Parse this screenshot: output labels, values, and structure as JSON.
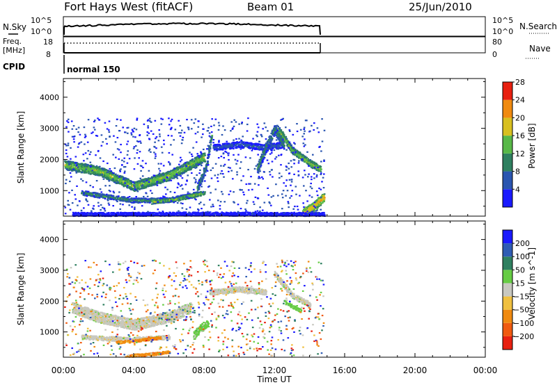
{
  "header": {
    "station": "Fort Hays West (fitACF)",
    "beam": "Beam 01",
    "date": "25/Jun/2010"
  },
  "header_panels": {
    "nsky": {
      "label": "N.Sky",
      "ticks_left": [
        "10^5",
        "10^0"
      ],
      "ticks_right": [
        "10^5",
        "10^0"
      ],
      "right_label": "N.Search"
    },
    "freq": {
      "label_line1": "Freq.",
      "label_line2": "[MHz]",
      "ticks_left": [
        "18",
        "8"
      ],
      "ticks_right": [
        "80",
        "0"
      ],
      "right_label": "Nave"
    },
    "cpid": {
      "label": "CPID",
      "value": "normal 150"
    }
  },
  "chart_data": [
    {
      "type": "heatmap",
      "panel": "power",
      "xlabel": "",
      "ylabel": "Slant Range [km]",
      "xlim": [
        0,
        24
      ],
      "ylim": [
        180,
        4600
      ],
      "yticks": [
        1000,
        2000,
        3000,
        4000
      ],
      "data_end_hour": 14.8,
      "colorbar": {
        "label": "Power [dB]",
        "ticks": [
          "4",
          "8",
          "12",
          "16",
          "20",
          "24",
          "28"
        ],
        "colors": [
          "#1a1aff",
          "#2a55b0",
          "#2f8060",
          "#58b848",
          "#d8c020",
          "#f08a10",
          "#e82010"
        ]
      },
      "bands": [
        {
          "t": [
            0.0,
            2.0,
            4.0,
            6.0,
            7.2,
            8.0
          ],
          "r": [
            1850,
            1650,
            1150,
            1500,
            1850,
            2100
          ],
          "w": 300,
          "level": 4
        },
        {
          "t": [
            1.0,
            2.5,
            4.0,
            6.0,
            7.5
          ],
          "r": [
            950,
            820,
            700,
            720,
            900
          ],
          "w": 150,
          "level": 3
        },
        {
          "t": [
            5.0,
            6.5,
            8.0
          ],
          "r": [
            650,
            750,
            950
          ],
          "w": 130,
          "level": 4
        },
        {
          "t": [
            7.6,
            8.1,
            8.4
          ],
          "r": [
            1100,
            1800,
            2800
          ],
          "w": 250,
          "level": 3
        },
        {
          "t": [
            8.5,
            10.0,
            11.5,
            12.5
          ],
          "r": [
            2400,
            2500,
            2400,
            2500
          ],
          "w": 200,
          "level": 2
        },
        {
          "t": [
            11.0,
            11.5,
            12.0,
            12.5
          ],
          "r": [
            1700,
            2400,
            3000,
            2500
          ],
          "w": 300,
          "level": 3
        },
        {
          "t": [
            12.2,
            13.0,
            14.0,
            14.6
          ],
          "r": [
            3000,
            2300,
            1900,
            1700
          ],
          "w": 220,
          "level": 4
        },
        {
          "t": [
            13.6,
            14.2,
            14.8
          ],
          "r": [
            280,
            500,
            800
          ],
          "w": 300,
          "level": 5
        },
        {
          "t": [
            0.5,
            3.0,
            6.0,
            9.0,
            12.0,
            14.8
          ],
          "r": [
            260,
            260,
            270,
            270,
            260,
            260
          ],
          "w": 120,
          "level": 1
        }
      ]
    },
    {
      "type": "heatmap",
      "panel": "velocity",
      "xlabel": "Time UT",
      "ylabel": "Slant Range [km]",
      "xlim": [
        0,
        24
      ],
      "ylim": [
        180,
        4600
      ],
      "yticks": [
        1000,
        2000,
        3000,
        4000
      ],
      "xticks": [
        "00:00",
        "04:00",
        "08:00",
        "12:00",
        "16:00",
        "20:00",
        "00:00"
      ],
      "data_end_hour": 14.8,
      "colorbar": {
        "label": "Velocity [m s^-1]",
        "ticks": [
          "200",
          "100",
          "50",
          "15",
          "-15",
          "-50",
          "-100",
          "-200"
        ],
        "colors": [
          "#1a1aff",
          "#2f5cb4",
          "#2f8060",
          "#66cc44",
          "#c8c8c0",
          "#f0c040",
          "#f08a10",
          "#f05a10",
          "#e82010"
        ]
      },
      "bands": [
        {
          "t": [
            0.5,
            2.0,
            4.0,
            6.0,
            7.2
          ],
          "r": [
            1800,
            1500,
            1250,
            1500,
            1800
          ],
          "w": 350,
          "level": 4
        },
        {
          "t": [
            1.0,
            2.5,
            4.0,
            6.0
          ],
          "r": [
            850,
            800,
            780,
            850
          ],
          "w": 140,
          "level": 4
        },
        {
          "t": [
            3.0,
            4.5,
            5.5
          ],
          "r": [
            680,
            760,
            830
          ],
          "w": 90,
          "level": 6
        },
        {
          "t": [
            3.5,
            5.0,
            6.0
          ],
          "r": [
            230,
            300,
            360
          ],
          "w": 90,
          "level": 6
        },
        {
          "t": [
            7.4,
            7.8,
            8.2
          ],
          "r": [
            900,
            1150,
            1300
          ],
          "w": 250,
          "level": 3
        },
        {
          "t": [
            8.3,
            10.0,
            11.5
          ],
          "r": [
            2300,
            2400,
            2300
          ],
          "w": 180,
          "level": 4
        },
        {
          "t": [
            12.0,
            13.0,
            14.0
          ],
          "r": [
            2900,
            2200,
            1900
          ],
          "w": 180,
          "level": 4
        },
        {
          "t": [
            12.5,
            13.5
          ],
          "r": [
            2000,
            1700
          ],
          "w": 120,
          "level": 3
        }
      ]
    }
  ]
}
